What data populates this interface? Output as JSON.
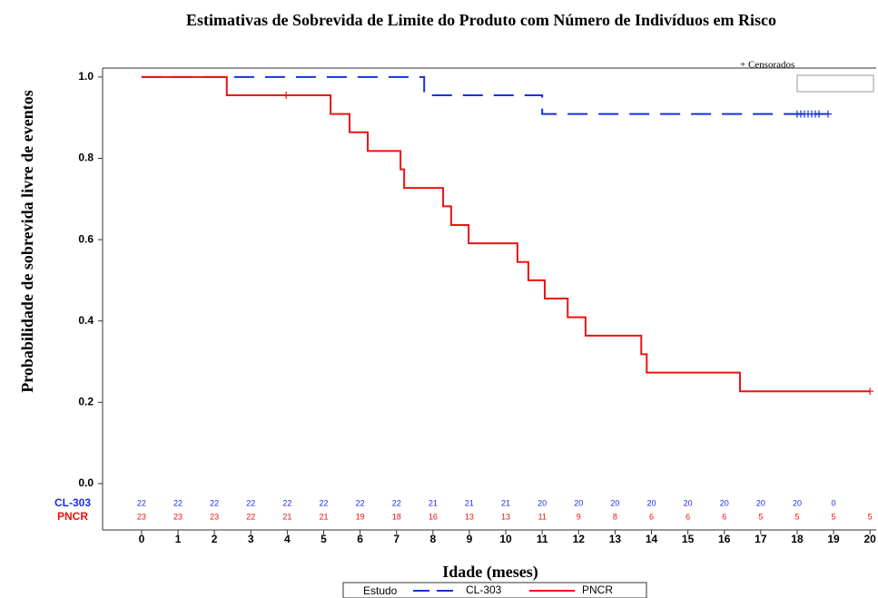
{
  "chart_data": {
    "type": "step",
    "title": "Estimativas de Sobrevida de Limite do Produto com Número de Indivíduos em Risco",
    "y_label": "Probabilidade de sobrevida livre de eventos",
    "x_label": "Idade (meses)",
    "censored_label": "+ Censorados",
    "legend_title": "Estudo",
    "xlim": [
      -1.07,
      20.17
    ],
    "ylim": [
      -0.114,
      1.022
    ],
    "xticks": [
      0,
      1,
      2,
      3,
      4,
      5,
      6,
      7,
      8,
      9,
      10,
      11,
      12,
      13,
      14,
      15,
      16,
      17,
      18,
      19,
      20
    ],
    "yticks": [
      {
        "value": 0,
        "label": "0.0"
      },
      0.2,
      0.4,
      0.6,
      0.8,
      {
        "value": 1,
        "label": "1.0"
      }
    ],
    "series": [
      {
        "name": "CL-303",
        "color": "#1a2fe0",
        "dash": true,
        "x": [
          0,
          7.76,
          11.0,
          18.85
        ],
        "values": [
          1.0,
          0.955,
          0.909,
          0.909
        ],
        "censored_x": [
          18.0,
          18.1,
          18.2,
          18.3,
          18.4,
          18.5,
          18.6,
          18.85
        ],
        "censored_y": [
          0.909,
          0.909,
          0.909,
          0.909,
          0.909,
          0.909,
          0.909,
          0.909
        ]
      },
      {
        "name": "PNCR",
        "color": "#ee1111",
        "dash": false,
        "x": [
          0,
          2.34,
          5.19,
          5.71,
          6.21,
          7.11,
          7.21,
          8.28,
          8.5,
          8.98,
          10.32,
          10.62,
          11.07,
          11.7,
          12.19,
          13.72,
          13.87,
          16.43,
          20
        ],
        "values": [
          1.0,
          0.955,
          0.909,
          0.864,
          0.818,
          0.773,
          0.727,
          0.682,
          0.636,
          0.591,
          0.545,
          0.5,
          0.455,
          0.409,
          0.364,
          0.318,
          0.273,
          0.227,
          0.227
        ],
        "censored_x": [
          3.97,
          20
        ],
        "censored_y": [
          0.955,
          0.227
        ]
      }
    ],
    "at_risk": [
      {
        "name": "CL-303",
        "color": "#1a2fe0",
        "values": [
          22,
          22,
          22,
          22,
          22,
          22,
          22,
          22,
          21,
          21,
          21,
          20,
          20,
          20,
          20,
          20,
          20,
          20,
          20,
          0,
          null
        ]
      },
      {
        "name": "PNCR",
        "color": "#ee1111",
        "values": [
          23,
          23,
          23,
          22,
          21,
          21,
          19,
          18,
          16,
          13,
          13,
          11,
          9,
          8,
          6,
          6,
          6,
          5,
          5,
          5,
          5
        ]
      }
    ]
  }
}
